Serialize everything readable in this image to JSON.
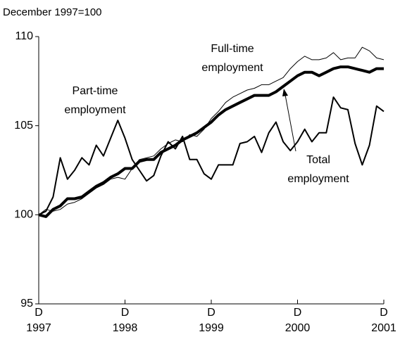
{
  "chart_data": {
    "type": "line",
    "subtitle": "December 1997=100",
    "categories": [
      "D",
      null,
      null,
      null,
      null,
      null,
      null,
      null,
      null,
      null,
      null,
      null,
      "D",
      null,
      null,
      null,
      null,
      null,
      null,
      null,
      null,
      null,
      null,
      null,
      "D",
      null,
      null,
      null,
      null,
      null,
      null,
      null,
      null,
      null,
      null,
      null,
      "D",
      null,
      null,
      null,
      null,
      null,
      null,
      null,
      null,
      null,
      null,
      null,
      "D"
    ],
    "category_sublabels": [
      "1997",
      null,
      null,
      null,
      null,
      null,
      null,
      null,
      null,
      null,
      null,
      null,
      "1998",
      null,
      null,
      null,
      null,
      null,
      null,
      null,
      null,
      null,
      null,
      null,
      "1999",
      null,
      null,
      null,
      null,
      null,
      null,
      null,
      null,
      null,
      null,
      null,
      "2000",
      null,
      null,
      null,
      null,
      null,
      null,
      null,
      null,
      null,
      null,
      null,
      "2001"
    ],
    "series": [
      {
        "name": "Part-time employment",
        "color": "#000000",
        "width": 2,
        "values": [
          100,
          100.2,
          101,
          103.2,
          102,
          102.5,
          103.2,
          102.8,
          103.9,
          103.3,
          104.3,
          105.3,
          104.3,
          103.1,
          102.5,
          101.9,
          102.2,
          103.3,
          104.1,
          103.7,
          104.4,
          103.1,
          103.1,
          102.3,
          102.0,
          102.8,
          102.8,
          102.8,
          104.0,
          104.1,
          104.4,
          103.5,
          104.6,
          105.2,
          104.1,
          103.6,
          104.1,
          104.8,
          104.1,
          104.6,
          104.6,
          106.6,
          106.0,
          105.9,
          104.0,
          102.8,
          103.9,
          106.1,
          105.8
        ]
      },
      {
        "name": "Full-time employment",
        "color": "#000000",
        "width": 1,
        "values": [
          100,
          100.3,
          100.2,
          100.3,
          100.6,
          100.7,
          100.9,
          101.2,
          101.5,
          101.7,
          102.0,
          102.1,
          102.0,
          102.6,
          103.1,
          103.2,
          103.3,
          103.7,
          104.0,
          104.2,
          104.1,
          104.5,
          104.4,
          104.8,
          105.4,
          105.8,
          106.3,
          106.6,
          106.8,
          107.0,
          107.1,
          107.3,
          107.3,
          107.5,
          107.7,
          108.2,
          108.6,
          108.9,
          108.7,
          108.7,
          108.8,
          109.1,
          108.7,
          108.8,
          108.8,
          109.4,
          109.2,
          108.8,
          108.7
        ]
      },
      {
        "name": "Total employment",
        "color": "#000000",
        "width": 4,
        "values": [
          100,
          99.9,
          100.3,
          100.5,
          100.9,
          100.9,
          101.0,
          101.3,
          101.6,
          101.8,
          102.1,
          102.3,
          102.6,
          102.6,
          103.0,
          103.1,
          103.1,
          103.5,
          103.7,
          103.9,
          104.2,
          104.4,
          104.6,
          104.9,
          105.2,
          105.6,
          105.9,
          106.1,
          106.3,
          106.5,
          106.7,
          106.7,
          106.7,
          106.9,
          107.2,
          107.5,
          107.8,
          108.0,
          108.0,
          107.8,
          108.0,
          108.2,
          108.3,
          108.3,
          108.2,
          108.1,
          108.0,
          108.2,
          108.2
        ]
      }
    ],
    "annotations": [
      [
        "Part-time",
        "employment"
      ],
      [
        "Full-time",
        "employment"
      ],
      [
        "Total",
        "employment"
      ]
    ],
    "ylim": [
      95,
      110
    ],
    "yticks": [
      95,
      100,
      105,
      110
    ]
  }
}
